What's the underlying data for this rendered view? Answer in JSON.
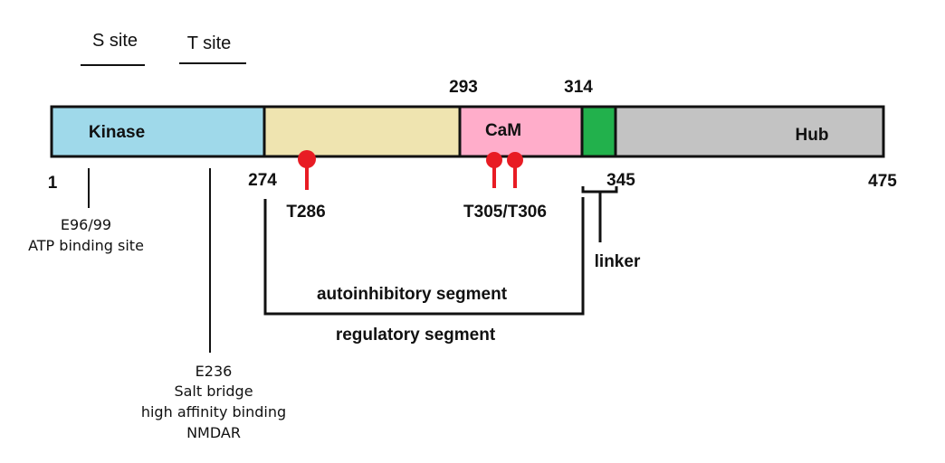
{
  "sites": {
    "s_site": "S site",
    "t_site": "T site"
  },
  "domains": {
    "kinase": "Kinase",
    "cam": "CaM",
    "hub": "Hub"
  },
  "positions": {
    "p1": "1",
    "p274": "274",
    "p293": "293",
    "p314": "314",
    "p345": "345",
    "p475": "475"
  },
  "phospho": {
    "t286": "T286",
    "t305_t306": "T305/T306"
  },
  "annotations": {
    "e96_line1": "E96/99",
    "e96_line2": "ATP binding site",
    "e236_line1": "E236",
    "e236_line2": "Salt bridge",
    "e236_line3": "high affinity binding",
    "e236_line4": "NMDAR"
  },
  "segments": {
    "linker": "linker",
    "autoinhibitory": "autoinhibitory segment",
    "regulatory": "regulatory segment"
  },
  "colors": {
    "kinase": "#9fd9ea",
    "autoinhibitory_region": "#efe4b0",
    "cam": "#ffadca",
    "linker": "#22b14c",
    "hub": "#c3c3c3",
    "phospho_marker": "#e81c24",
    "outline": "#111111"
  }
}
